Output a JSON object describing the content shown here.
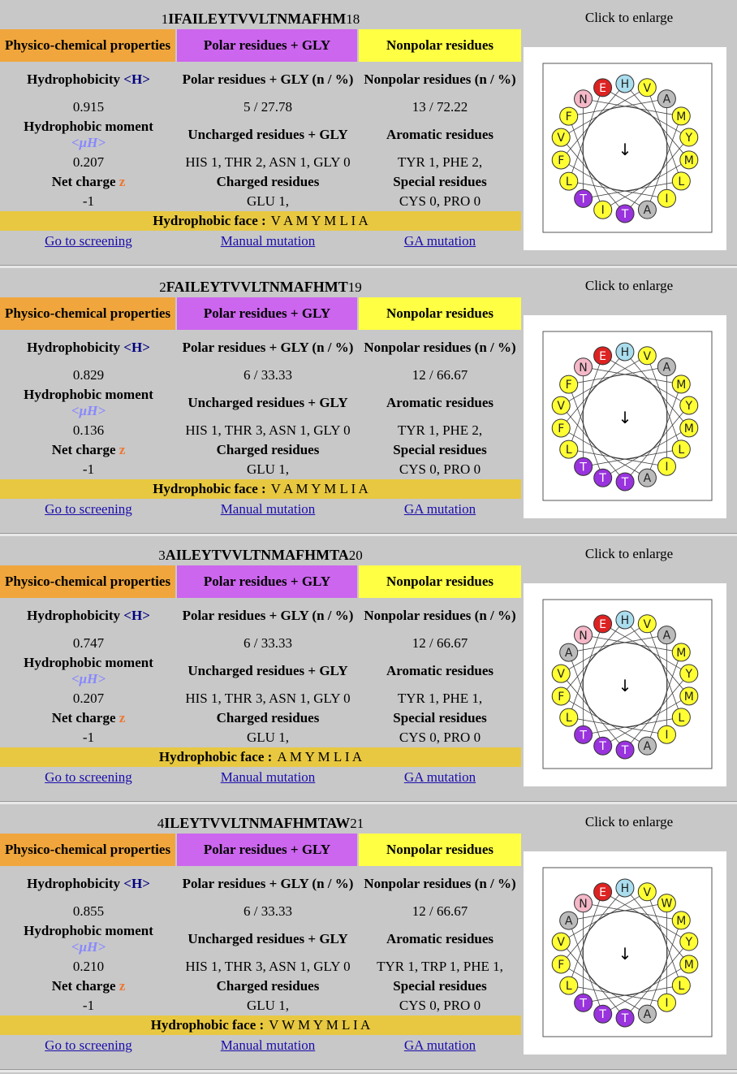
{
  "labels": {
    "physico": "Physico-chemical properties",
    "polar": "Polar residues + GLY",
    "nonpolar": "Nonpolar residues",
    "hydrophobicity": "Hydrophobicity",
    "hydrophobicity_sym": "<H>",
    "polar_n": "Polar residues + GLY (n / %)",
    "nonpolar_n": "Nonpolar residues (n / %)",
    "moment": "Hydrophobic moment",
    "moment_sym": "<μH>",
    "uncharged": "Uncharged residues + GLY",
    "aromatic": "Aromatic residues",
    "netcharge": "Net charge",
    "netcharge_sym": "z",
    "charged": "Charged residues",
    "special": "Special residues",
    "hface": "Hydrophobic face :",
    "enlarge": "Click to enlarge",
    "go": "Go to screening",
    "manual": "Manual mutation",
    "ga": "GA mutation"
  },
  "colors": {
    "header_physico": "#f0a63c",
    "header_polar": "#cc66ee",
    "header_nonpolar": "#ffff44",
    "hydrophobic_face": "#e8c840",
    "residue_hydrophobic": "#ffff33",
    "residue_polar": "#9933dd",
    "residue_charged_neg": "#dd2222",
    "residue_his": "#aaddee",
    "residue_asn": "#f4b8c8",
    "residue_ala": "#bbbbbb"
  },
  "sections": [
    {
      "start": "1",
      "seq": "IFAILEYTVVLTNMAFHM",
      "end": "18",
      "hydrophobicity": "0.915",
      "polar_n": "5 / 27.78",
      "nonpolar_n": "13 / 72.22",
      "moment": "0.207",
      "uncharged": "HIS 1, THR 2, ASN 1, GLY 0",
      "aromatic": "TYR 1, PHE 2,",
      "netcharge": "-1",
      "charged": "GLU 1,",
      "special": "CYS 0, PRO 0",
      "hface": "V A M Y M L I A",
      "wheel": [
        "E",
        "H",
        "V",
        "A",
        "M",
        "Y",
        "M",
        "L",
        "I",
        "A",
        "T",
        "I",
        "T",
        "L",
        "F",
        "V",
        "F",
        "N"
      ],
      "n_after": "I",
      "c_after": "M"
    },
    {
      "start": "2",
      "seq": "FAILEYTVVLTNMAFHMT",
      "end": "19",
      "hydrophobicity": "0.829",
      "polar_n": "6 / 33.33",
      "nonpolar_n": "12 / 66.67",
      "moment": "0.136",
      "uncharged": "HIS 1, THR 3, ASN 1, GLY 0",
      "aromatic": "TYR 1, PHE 2,",
      "netcharge": "-1",
      "charged": "GLU 1,",
      "special": "CYS 0, PRO 0",
      "hface": "V A M Y M L I A",
      "wheel": [
        "E",
        "H",
        "V",
        "A",
        "M",
        "Y",
        "M",
        "L",
        "I",
        "A",
        "T",
        "T",
        "T",
        "L",
        "F",
        "V",
        "F",
        "N"
      ],
      "n_after": "F",
      "c_after": "T"
    },
    {
      "start": "3",
      "seq": "AILEYTVVLTNMAFHMTA",
      "end": "20",
      "hydrophobicity": "0.747",
      "polar_n": "6 / 33.33",
      "nonpolar_n": "12 / 66.67",
      "moment": "0.207",
      "uncharged": "HIS 1, THR 3, ASN 1, GLY 0",
      "aromatic": "TYR 1, PHE 1,",
      "netcharge": "-1",
      "charged": "GLU 1,",
      "special": "CYS 0, PRO 0",
      "hface": "A M Y M L I A",
      "wheel": [
        "E",
        "H",
        "V",
        "A",
        "M",
        "Y",
        "M",
        "L",
        "I",
        "A",
        "T",
        "T",
        "T",
        "L",
        "F",
        "V",
        "A",
        "N"
      ],
      "n_after": "A",
      "c_after": "A"
    },
    {
      "start": "4",
      "seq": "ILEYTVVLTNMAFHMTAW",
      "end": "21",
      "hydrophobicity": "0.855",
      "polar_n": "6 / 33.33",
      "nonpolar_n": "12 / 66.67",
      "moment": "0.210",
      "uncharged": "HIS 1, THR 3, ASN 1, GLY 0",
      "aromatic": "TYR 1, TRP 1, PHE 1,",
      "netcharge": "-1",
      "charged": "GLU 1,",
      "special": "CYS 0, PRO 0",
      "hface": "V W M Y M L I A",
      "wheel": [
        "E",
        "H",
        "V",
        "W",
        "M",
        "Y",
        "M",
        "L",
        "I",
        "A",
        "T",
        "T",
        "T",
        "L",
        "F",
        "V",
        "A",
        "N"
      ],
      "n_after": "I",
      "c_after": "W"
    }
  ]
}
